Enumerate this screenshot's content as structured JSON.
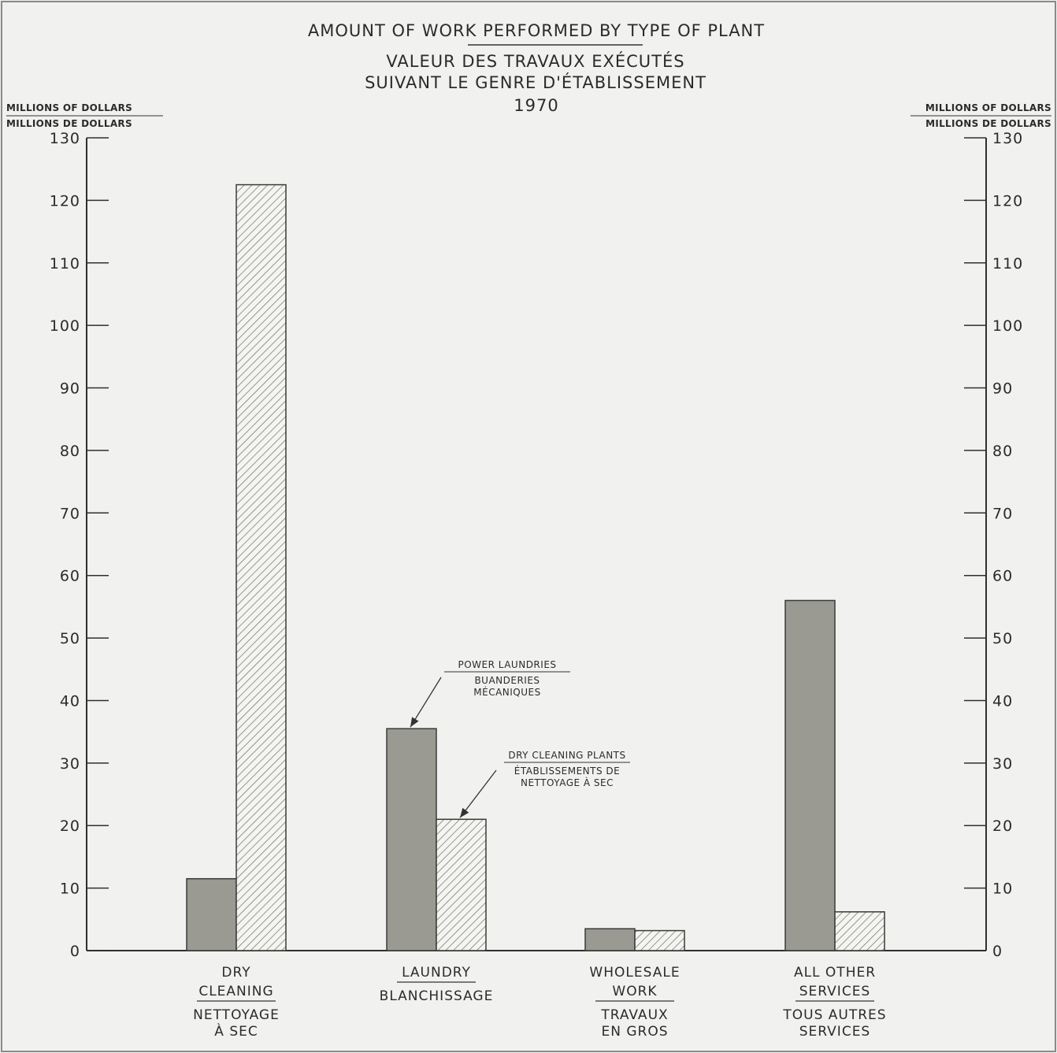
{
  "chart_data": {
    "type": "bar",
    "title": "AMOUNT OF WORK PERFORMED BY TYPE OF PLANT",
    "subtitle_lines": [
      "VALEUR DES TRAVAUX EXÉCUTÉS",
      "SUIVANT LE GENRE D'ÉTABLISSEMENT",
      "1970"
    ],
    "ylabel_en": "MILLIONS OF DOLLARS",
    "ylabel_fr": "MILLIONS DE DOLLARS",
    "ylim": [
      0,
      130
    ],
    "yticks": [
      0,
      10,
      20,
      30,
      40,
      50,
      60,
      70,
      80,
      90,
      100,
      110,
      120,
      130
    ],
    "categories": [
      {
        "en": [
          "DRY",
          "CLEANING"
        ],
        "fr": [
          "NETTOYAGE",
          "À SEC"
        ]
      },
      {
        "en": [
          "LAUNDRY"
        ],
        "fr": [
          "BLANCHISSAGE"
        ]
      },
      {
        "en": [
          "WHOLESALE",
          "WORK"
        ],
        "fr": [
          "TRAVAUX",
          "EN GROS"
        ]
      },
      {
        "en": [
          "ALL OTHER",
          "SERVICES"
        ],
        "fr": [
          "TOUS AUTRES",
          "SERVICES"
        ]
      }
    ],
    "series": [
      {
        "name": "POWER LAUNDRIES / BUANDERIES MÉCANIQUES",
        "fill": "solid",
        "color": "#9a9a92",
        "values": [
          11.5,
          35.5,
          3.5,
          56
        ]
      },
      {
        "name": "DRY CLEANING PLANTS / ÉTABLISSEMENTS DE NETTOYAGE À SEC",
        "fill": "hatched",
        "color": "#8a8a84",
        "values": [
          122.5,
          21,
          3.2,
          6.2
        ]
      }
    ],
    "annotations": [
      {
        "series": 0,
        "category": 1,
        "lines_en": [
          "POWER LAUNDRIES"
        ],
        "lines_fr": [
          "BUANDERIES",
          "MÉCANIQUES"
        ]
      },
      {
        "series": 1,
        "category": 1,
        "lines_en": [
          "DRY CLEANING PLANTS"
        ],
        "lines_fr": [
          "ÉTABLISSEMENTS DE",
          "NETTOYAGE À SEC"
        ]
      }
    ],
    "grid": false,
    "legend": "none"
  }
}
